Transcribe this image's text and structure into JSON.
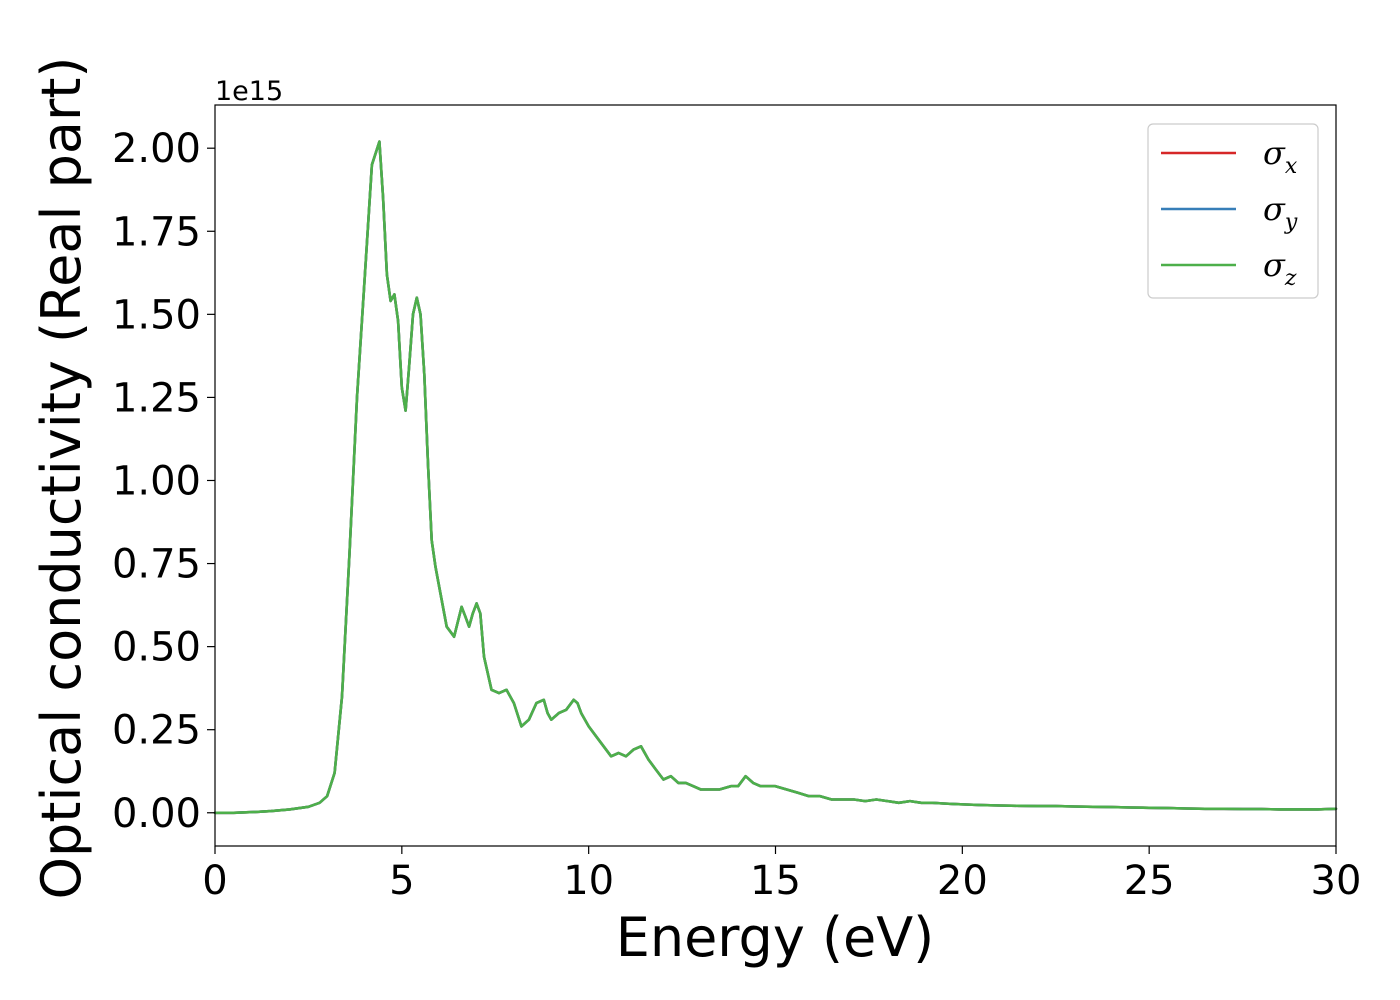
{
  "chart_data": {
    "type": "line",
    "title": "",
    "xlabel": "Energy (eV)",
    "ylabel": "Optical conductivity (Real part)",
    "y_offset_text": "1e15",
    "y_scale": 1000000000000000.0,
    "xlim": [
      0,
      30
    ],
    "ylim": [
      -0.1,
      2.13
    ],
    "x_ticks": [
      0,
      5,
      10,
      15,
      20,
      25,
      30
    ],
    "x_tick_labels": [
      "0",
      "5",
      "10",
      "15",
      "20",
      "25",
      "30"
    ],
    "y_ticks": [
      0.0,
      0.25,
      0.5,
      0.75,
      1.0,
      1.25,
      1.5,
      1.75,
      2.0
    ],
    "y_tick_labels": [
      "0.00",
      "0.25",
      "0.50",
      "0.75",
      "1.00",
      "1.25",
      "1.50",
      "1.75",
      "2.00"
    ],
    "grid": false,
    "legend_position": "top-right",
    "x": [
      0,
      0.5,
      1.0,
      1.5,
      2.0,
      2.5,
      2.8,
      3.0,
      3.2,
      3.4,
      3.6,
      3.8,
      4.0,
      4.2,
      4.4,
      4.5,
      4.6,
      4.7,
      4.8,
      4.9,
      5.0,
      5.1,
      5.2,
      5.3,
      5.4,
      5.5,
      5.6,
      5.7,
      5.8,
      5.9,
      6.0,
      6.2,
      6.4,
      6.6,
      6.7,
      6.8,
      6.9,
      7.0,
      7.1,
      7.2,
      7.4,
      7.6,
      7.8,
      8.0,
      8.2,
      8.4,
      8.6,
      8.8,
      8.9,
      9.0,
      9.2,
      9.4,
      9.6,
      9.7,
      9.8,
      10.0,
      10.2,
      10.4,
      10.6,
      10.8,
      11.0,
      11.2,
      11.4,
      11.6,
      11.8,
      12.0,
      12.2,
      12.4,
      12.6,
      12.8,
      13.0,
      13.2,
      13.5,
      13.8,
      14.0,
      14.2,
      14.4,
      14.6,
      14.8,
      15.0,
      15.3,
      15.6,
      15.9,
      16.2,
      16.5,
      16.8,
      17.1,
      17.4,
      17.7,
      18.0,
      18.3,
      18.6,
      18.9,
      19.2,
      19.5,
      19.8,
      20.1,
      20.5,
      21.0,
      21.5,
      22.0,
      22.5,
      23.0,
      23.5,
      24.0,
      24.5,
      25.0,
      25.5,
      26.0,
      26.5,
      27.0,
      27.5,
      28.0,
      28.5,
      29.0,
      29.5,
      30.0
    ],
    "series": [
      {
        "name": "σx",
        "label_base": "σ",
        "label_sub": "x",
        "color": "#d62728",
        "values": [
          0.0,
          0.0,
          0.002,
          0.005,
          0.01,
          0.018,
          0.03,
          0.05,
          0.12,
          0.35,
          0.78,
          1.25,
          1.6,
          1.95,
          2.02,
          1.85,
          1.62,
          1.54,
          1.56,
          1.48,
          1.28,
          1.21,
          1.35,
          1.5,
          1.55,
          1.5,
          1.32,
          1.05,
          0.82,
          0.74,
          0.68,
          0.56,
          0.53,
          0.62,
          0.59,
          0.56,
          0.6,
          0.63,
          0.6,
          0.47,
          0.37,
          0.36,
          0.37,
          0.33,
          0.26,
          0.28,
          0.33,
          0.34,
          0.3,
          0.28,
          0.3,
          0.31,
          0.34,
          0.33,
          0.3,
          0.26,
          0.23,
          0.2,
          0.17,
          0.18,
          0.17,
          0.19,
          0.2,
          0.16,
          0.13,
          0.1,
          0.11,
          0.09,
          0.09,
          0.08,
          0.07,
          0.07,
          0.07,
          0.08,
          0.08,
          0.11,
          0.09,
          0.08,
          0.08,
          0.08,
          0.07,
          0.06,
          0.05,
          0.05,
          0.04,
          0.04,
          0.04,
          0.035,
          0.04,
          0.035,
          0.03,
          0.035,
          0.03,
          0.03,
          0.028,
          0.026,
          0.025,
          0.023,
          0.022,
          0.021,
          0.02,
          0.02,
          0.019,
          0.018,
          0.017,
          0.016,
          0.015,
          0.014,
          0.013,
          0.012,
          0.012,
          0.011,
          0.011,
          0.01,
          0.01,
          0.01,
          0.012
        ]
      },
      {
        "name": "σy",
        "label_base": "σ",
        "label_sub": "y",
        "color": "#377eb8",
        "values": [
          0.0,
          0.0,
          0.002,
          0.005,
          0.01,
          0.018,
          0.03,
          0.05,
          0.12,
          0.35,
          0.78,
          1.25,
          1.6,
          1.95,
          2.02,
          1.85,
          1.62,
          1.54,
          1.56,
          1.48,
          1.28,
          1.21,
          1.35,
          1.5,
          1.55,
          1.5,
          1.32,
          1.05,
          0.82,
          0.74,
          0.68,
          0.56,
          0.53,
          0.62,
          0.59,
          0.56,
          0.6,
          0.63,
          0.6,
          0.47,
          0.37,
          0.36,
          0.37,
          0.33,
          0.26,
          0.28,
          0.33,
          0.34,
          0.3,
          0.28,
          0.3,
          0.31,
          0.34,
          0.33,
          0.3,
          0.26,
          0.23,
          0.2,
          0.17,
          0.18,
          0.17,
          0.19,
          0.2,
          0.16,
          0.13,
          0.1,
          0.11,
          0.09,
          0.09,
          0.08,
          0.07,
          0.07,
          0.07,
          0.08,
          0.08,
          0.11,
          0.09,
          0.08,
          0.08,
          0.08,
          0.07,
          0.06,
          0.05,
          0.05,
          0.04,
          0.04,
          0.04,
          0.035,
          0.04,
          0.035,
          0.03,
          0.035,
          0.03,
          0.03,
          0.028,
          0.026,
          0.025,
          0.023,
          0.022,
          0.021,
          0.02,
          0.02,
          0.019,
          0.018,
          0.017,
          0.016,
          0.015,
          0.014,
          0.013,
          0.012,
          0.012,
          0.011,
          0.011,
          0.01,
          0.01,
          0.01,
          0.012
        ]
      },
      {
        "name": "σz",
        "label_base": "σ",
        "label_sub": "z",
        "color": "#4daf4a",
        "values": [
          0.0,
          0.0,
          0.002,
          0.005,
          0.01,
          0.018,
          0.03,
          0.05,
          0.12,
          0.35,
          0.78,
          1.25,
          1.6,
          1.95,
          2.02,
          1.85,
          1.62,
          1.54,
          1.56,
          1.48,
          1.28,
          1.21,
          1.35,
          1.5,
          1.55,
          1.5,
          1.32,
          1.05,
          0.82,
          0.74,
          0.68,
          0.56,
          0.53,
          0.62,
          0.59,
          0.56,
          0.6,
          0.63,
          0.6,
          0.47,
          0.37,
          0.36,
          0.37,
          0.33,
          0.26,
          0.28,
          0.33,
          0.34,
          0.3,
          0.28,
          0.3,
          0.31,
          0.34,
          0.33,
          0.3,
          0.26,
          0.23,
          0.2,
          0.17,
          0.18,
          0.17,
          0.19,
          0.2,
          0.16,
          0.13,
          0.1,
          0.11,
          0.09,
          0.09,
          0.08,
          0.07,
          0.07,
          0.07,
          0.08,
          0.08,
          0.11,
          0.09,
          0.08,
          0.08,
          0.08,
          0.07,
          0.06,
          0.05,
          0.05,
          0.04,
          0.04,
          0.04,
          0.035,
          0.04,
          0.035,
          0.03,
          0.035,
          0.03,
          0.03,
          0.028,
          0.026,
          0.025,
          0.023,
          0.022,
          0.021,
          0.02,
          0.02,
          0.019,
          0.018,
          0.017,
          0.016,
          0.015,
          0.014,
          0.013,
          0.012,
          0.012,
          0.011,
          0.011,
          0.01,
          0.01,
          0.01,
          0.012
        ]
      }
    ]
  }
}
